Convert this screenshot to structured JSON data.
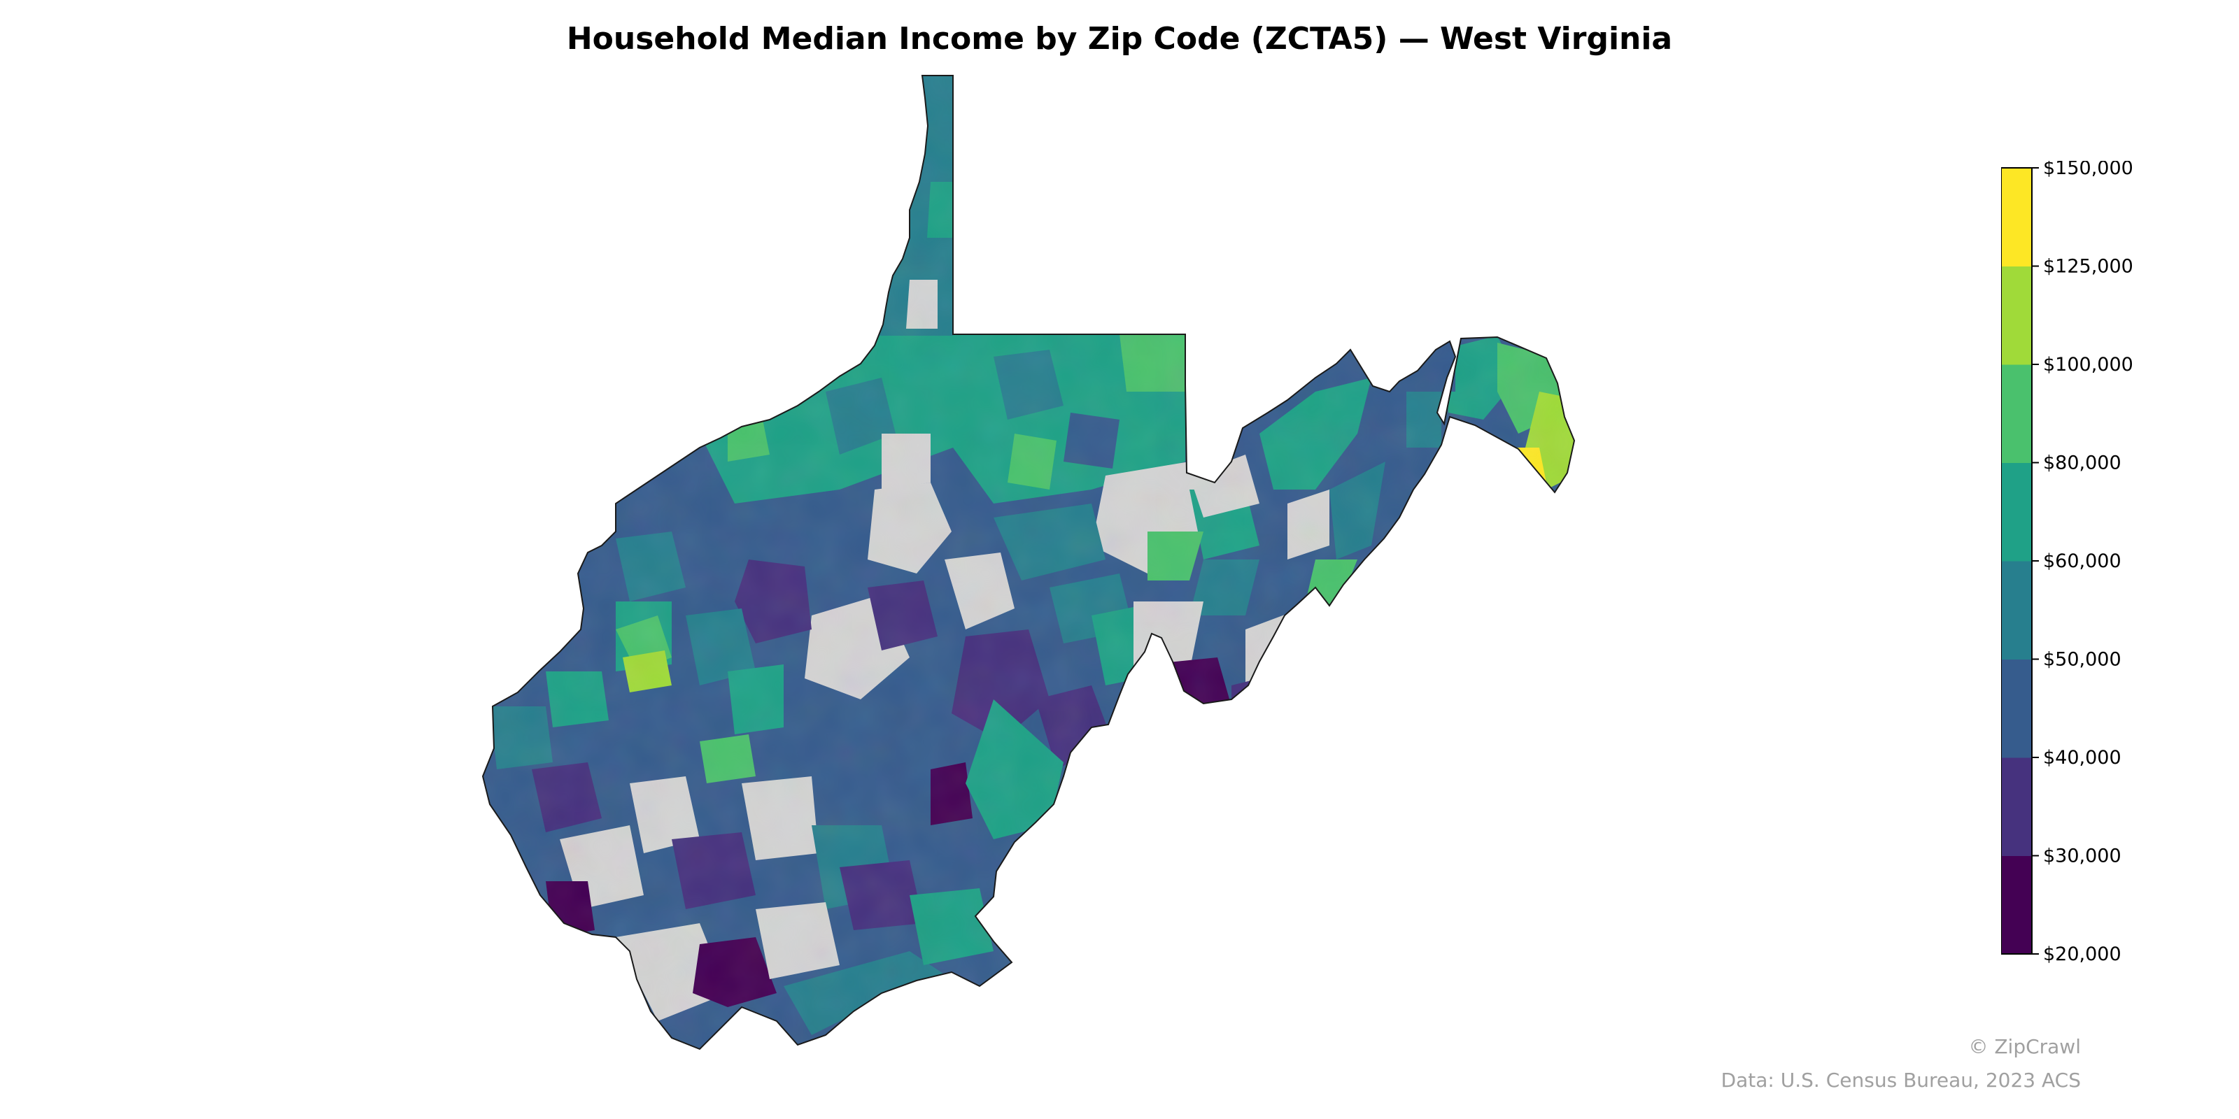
{
  "title": "Household Median Income by Zip Code (ZCTA5) — West Virginia",
  "legend": {
    "title": "",
    "colors": [
      "#440154",
      "#46327e",
      "#365c8d",
      "#277f8e",
      "#1fa187",
      "#4ac16d",
      "#a0da39",
      "#fde725"
    ],
    "tick_labels": [
      "$20,000",
      "$30,000",
      "$40,000",
      "$50,000",
      "$60,000",
      "$80,000",
      "$100,000",
      "$125,000",
      "$150,000"
    ],
    "no_data_color": "#d3d3d3"
  },
  "credit": "© ZipCrawl",
  "source": "Data: U.S. Census Bureau, 2023 ACS"
}
